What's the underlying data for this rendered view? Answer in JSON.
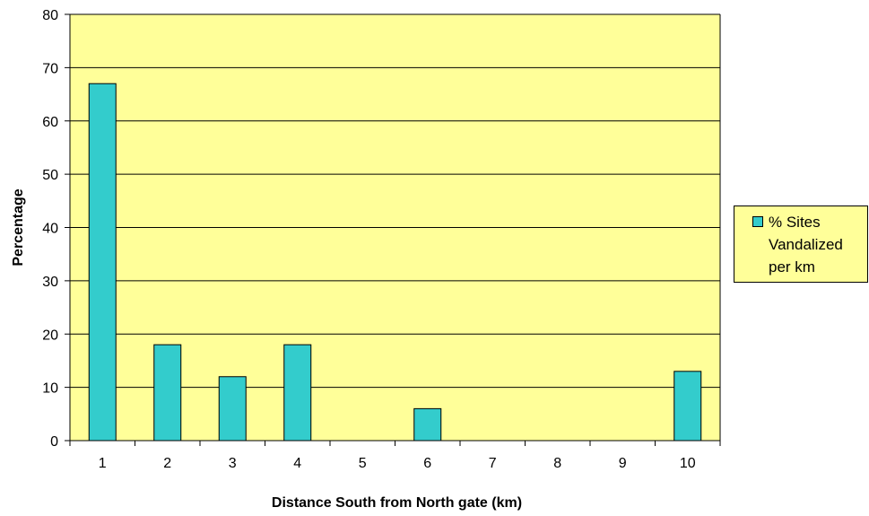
{
  "colors": {
    "plot_background": "#ffff99",
    "bar_fill": "#33cccc",
    "gridline": "#000000"
  },
  "chart_data": {
    "type": "bar",
    "categories": [
      "1",
      "2",
      "3",
      "4",
      "5",
      "6",
      "7",
      "8",
      "9",
      "10"
    ],
    "series": [
      {
        "name": "% Sites Vandalized per km",
        "values": [
          67,
          18,
          12,
          18,
          0,
          6,
          0,
          0,
          0,
          13
        ]
      }
    ],
    "title": "",
    "xlabel": "Distance South from North gate (km)",
    "ylabel": "Percentage",
    "ylim": [
      0,
      80
    ],
    "yticks": [
      "0",
      "10",
      "20",
      "30",
      "40",
      "50",
      "60",
      "70",
      "80"
    ],
    "grid": true,
    "legend_position": "right"
  }
}
